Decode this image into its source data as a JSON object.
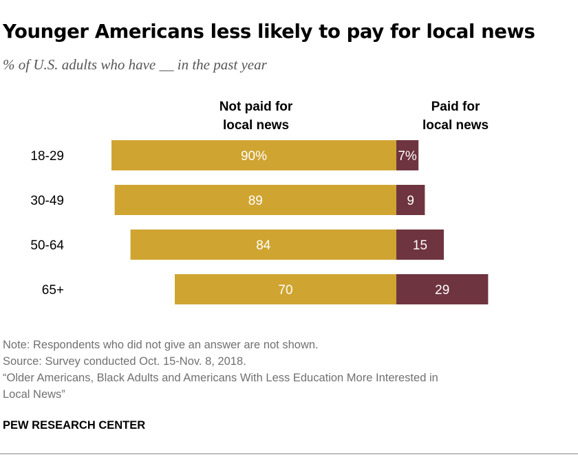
{
  "header": {
    "title": "Younger Americans less likely to pay for local news",
    "subtitle": "% of U.S. adults who have __ in the past year"
  },
  "chart_data": {
    "type": "bar",
    "orientation": "horizontal",
    "stacked": "diverging",
    "categories": [
      "18-29",
      "30-49",
      "50-64",
      "65+"
    ],
    "series": [
      {
        "name": "Not paid for local news",
        "values": [
          90,
          89,
          84,
          70
        ],
        "labels": [
          "90%",
          "89",
          "84",
          "70"
        ],
        "color": "#cfa431"
      },
      {
        "name": "Paid for local news",
        "values": [
          7,
          9,
          15,
          29
        ],
        "labels": [
          "7%",
          "9",
          "15",
          "29"
        ],
        "color": "#6e343f"
      }
    ],
    "legend_placement": "top",
    "grid": false
  },
  "footer": {
    "note": "Note: Respondents who did not give an answer are not shown.",
    "source": "Source: Survey conducted Oct. 15-Nov. 8, 2018.",
    "report_line1": "“Older Americans, Black Adults and Americans With Less Education More Interested in",
    "report_line2": "Local News”",
    "brand": "PEW RESEARCH CENTER"
  }
}
